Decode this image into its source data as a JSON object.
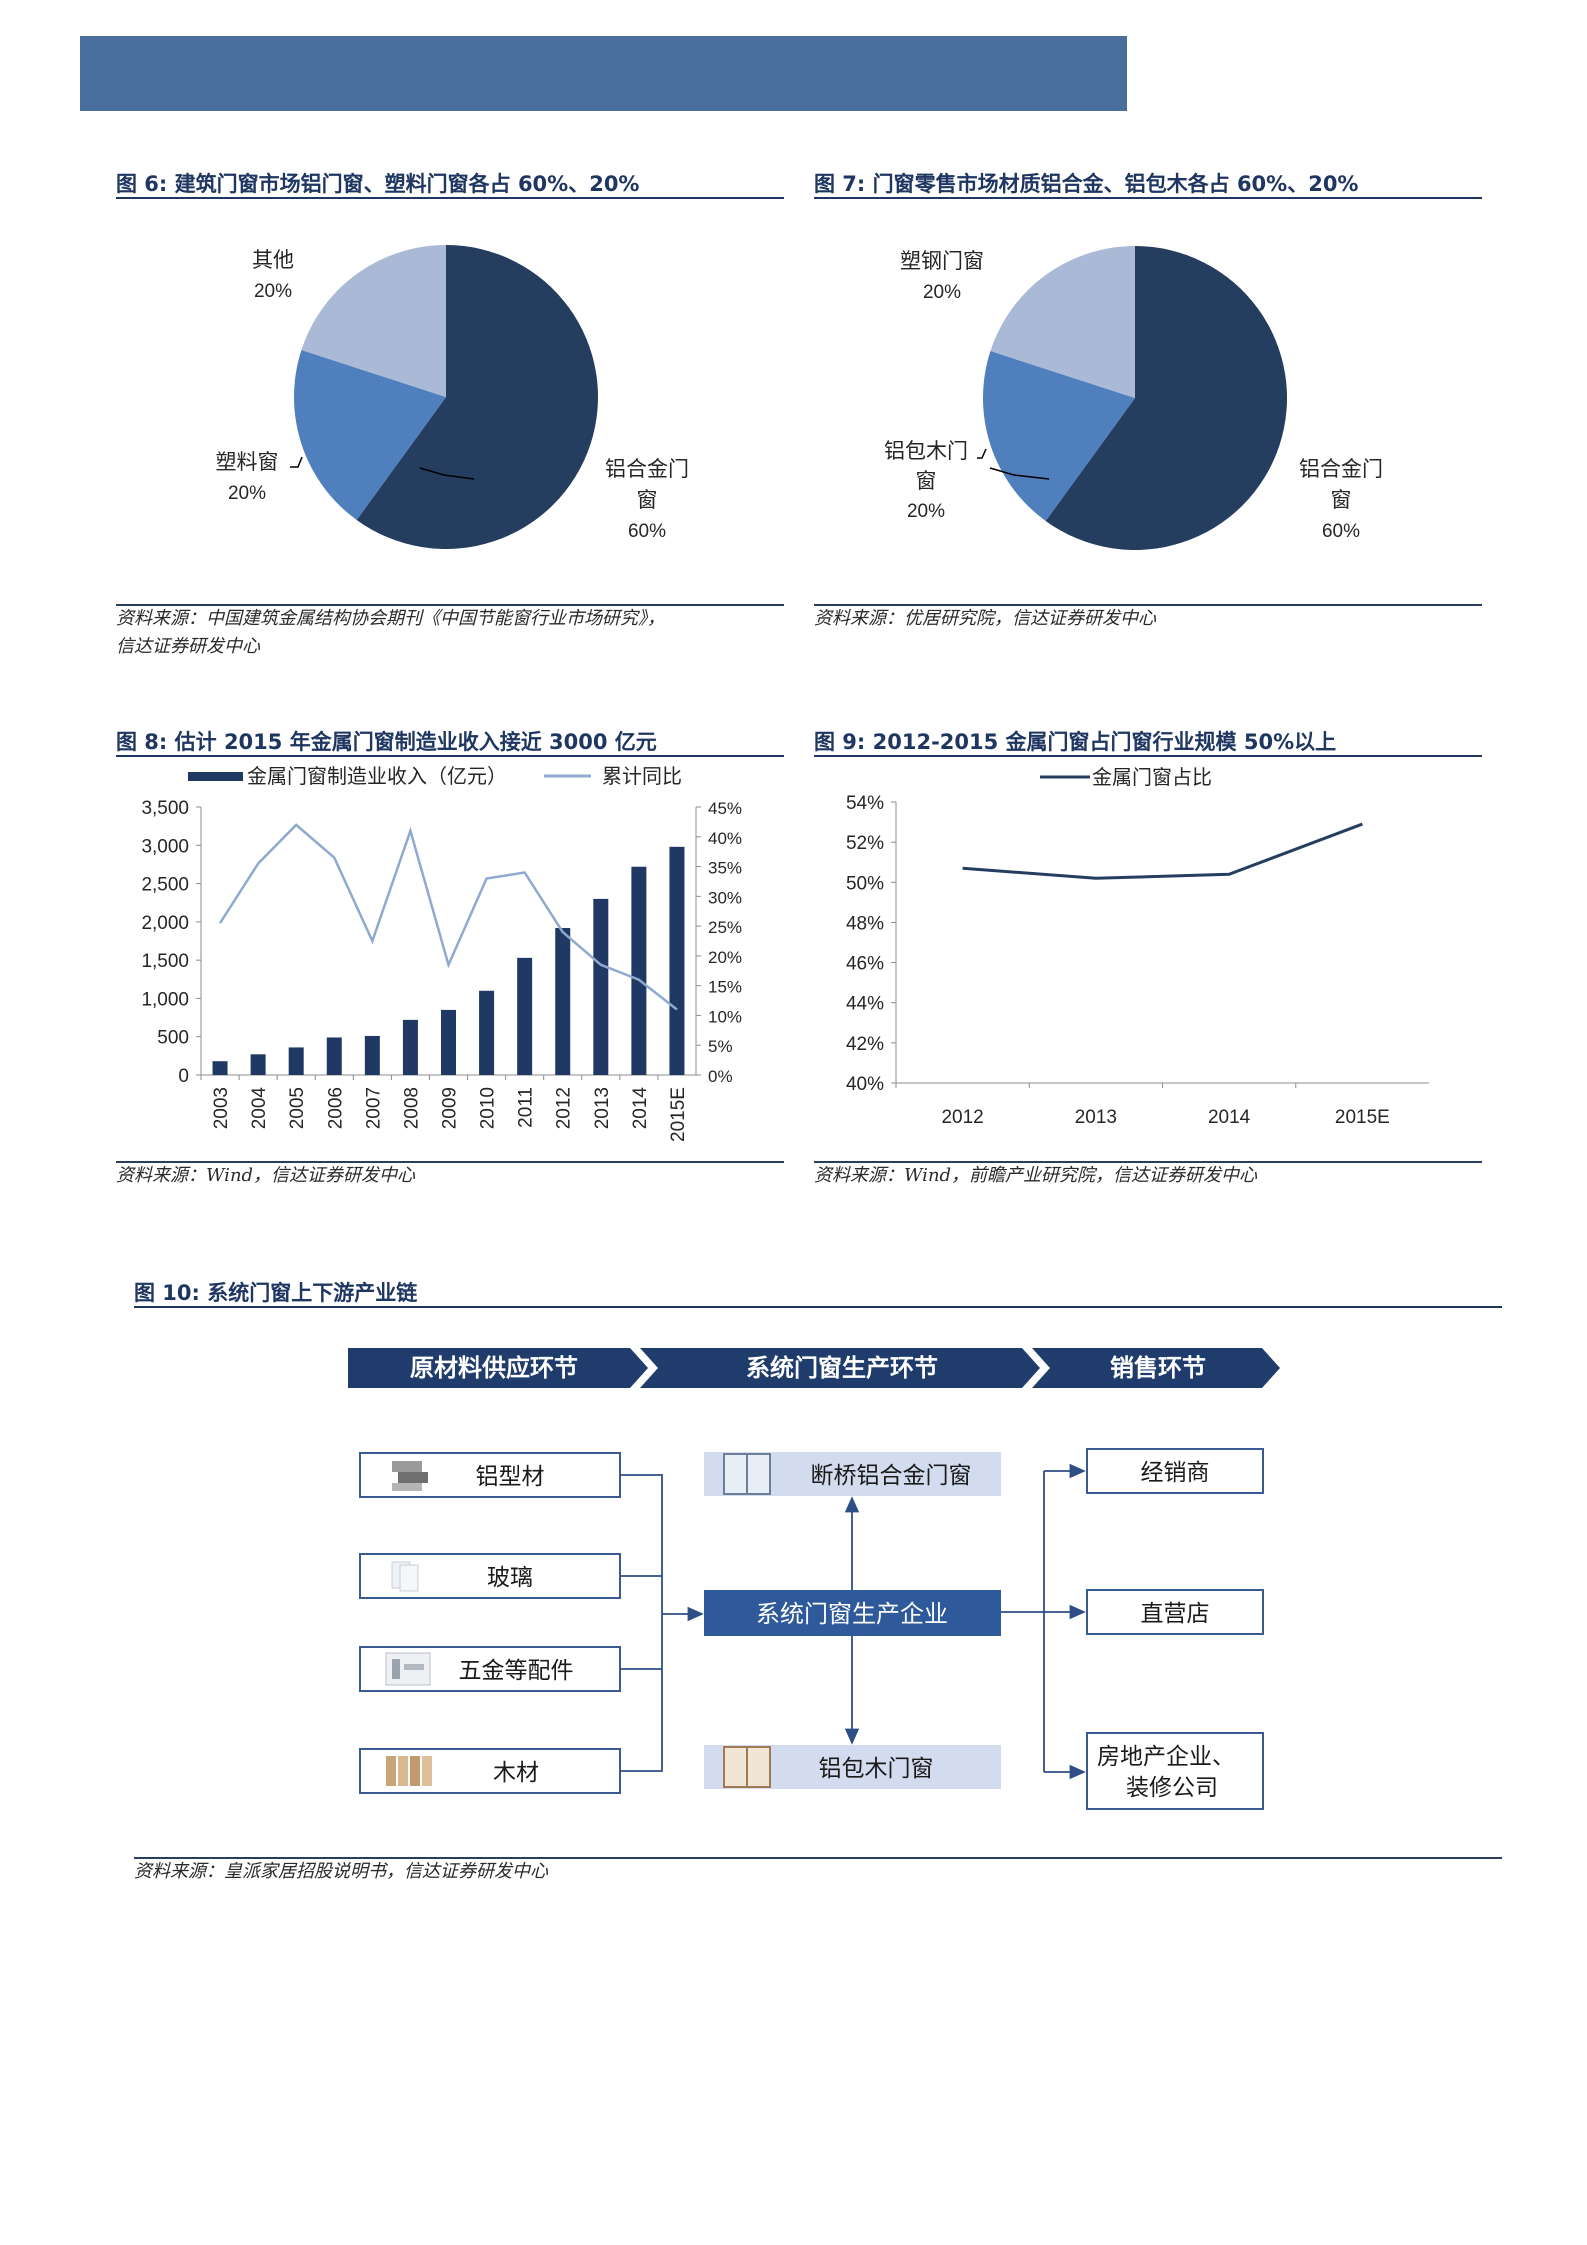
{
  "header": {
    "color": "#4a6f9c"
  },
  "fig6": {
    "title": "图 6:  建筑门窗市场铝门窗、塑料门窗各占 60%、20%",
    "source_line1": "资料来源：中国建筑金属结构协会期刊《中国节能窗行业市场研究》，",
    "source_line2": "信达证券研发中心",
    "labels": {
      "alu_1": "铝合金门",
      "alu_2": "窗",
      "alu_pct": "60%",
      "plastic": "塑料窗",
      "plastic_pct": "20%",
      "other": "其他",
      "other_pct": "20%"
    }
  },
  "fig7": {
    "title": "图 7:  门窗零售市场材质铝合金、铝包木各占 60%、20%",
    "source": "资料来源：优居研究院，信达证券研发中心",
    "labels": {
      "alu_1": "铝合金门",
      "alu_2": "窗",
      "alu_pct": "60%",
      "wood_1": "铝包木门",
      "wood_2": "窗",
      "wood_pct": "20%",
      "steel": "塑钢门窗",
      "steel_pct": "20%"
    }
  },
  "fig8": {
    "title": "图 8:  估计 2015 年金属门窗制造业收入接近 3000 亿元",
    "source": "资料来源：Wind，信达证券研发中心",
    "legend_bar": "金属门窗制造业收入（亿元）",
    "legend_line": "累计同比",
    "left_ticks": [
      "0",
      "500",
      "1,000",
      "1,500",
      "2,000",
      "2,500",
      "3,000",
      "3,500"
    ],
    "right_ticks": [
      "0%",
      "5%",
      "10%",
      "15%",
      "20%",
      "25%",
      "30%",
      "35%",
      "40%",
      "45%"
    ]
  },
  "fig9": {
    "title": "图 9:  2012-2015 金属门窗占门窗行业规模 50%以上",
    "source": "资料来源：Wind，前瞻产业研究院，信达证券研发中心",
    "legend": "金属门窗占比",
    "y_ticks": [
      "40%",
      "42%",
      "44%",
      "46%",
      "48%",
      "50%",
      "52%",
      "54%"
    ]
  },
  "fig10": {
    "title": "图 10:  系统门窗上下游产业链",
    "source": "资料来源：皇派家居招股说明书，信达证券研发中心",
    "stages": [
      "原材料供应环节",
      "系统门窗生产环节",
      "销售环节"
    ],
    "materials": [
      "铝型材",
      "玻璃",
      "五金等配件",
      "木材"
    ],
    "products": {
      "top": "断桥铝合金门窗",
      "center": "系统门窗生产企业",
      "bottom": "铝包木门窗"
    },
    "channels": [
      "经销商",
      "直营店",
      "房地产企业、",
      "装修公司"
    ]
  },
  "chart_data": [
    {
      "type": "pie",
      "slices": [
        {
          "label": "铝合金门窗",
          "value": 60,
          "color": "#253d5f"
        },
        {
          "label": "塑料窗",
          "value": 20,
          "color": "#4f7fbc"
        },
        {
          "label": "其他",
          "value": 20,
          "color": "#a9b9d6"
        }
      ]
    },
    {
      "type": "pie",
      "slices": [
        {
          "label": "铝合金门窗",
          "value": 60,
          "color": "#253d5f"
        },
        {
          "label": "铝包木门窗",
          "value": 20,
          "color": "#4f7fbc"
        },
        {
          "label": "塑钢门窗",
          "value": 20,
          "color": "#a9b9d6"
        }
      ]
    },
    {
      "type": "bar",
      "categories": [
        "2003",
        "2004",
        "2005",
        "2006",
        "2007",
        "2008",
        "2009",
        "2010",
        "2011",
        "2012",
        "2013",
        "2014",
        "2015E"
      ],
      "series": [
        {
          "name": "金属门窗制造业收入（亿元）",
          "type": "bar",
          "axis": "left",
          "color": "#1f3864",
          "values": [
            180,
            270,
            360,
            490,
            510,
            720,
            850,
            1100,
            1530,
            1920,
            2300,
            2720,
            2980
          ]
        },
        {
          "name": "累计同比",
          "type": "line",
          "axis": "right",
          "color": "#8fa9cf",
          "values": [
            25.5,
            35.5,
            42,
            36.5,
            22.5,
            41,
            18.5,
            33,
            34,
            24,
            18.5,
            16,
            11
          ]
        }
      ],
      "ylim": [
        0,
        3500
      ],
      "y2lim": [
        0,
        45
      ]
    },
    {
      "type": "line",
      "categories": [
        "2012",
        "2013",
        "2014",
        "2015E"
      ],
      "series": [
        {
          "name": "金属门窗占比",
          "color": "#253d5f",
          "values": [
            50.7,
            50.2,
            50.4,
            52.9
          ]
        }
      ],
      "ylim": [
        40,
        54
      ]
    }
  ]
}
